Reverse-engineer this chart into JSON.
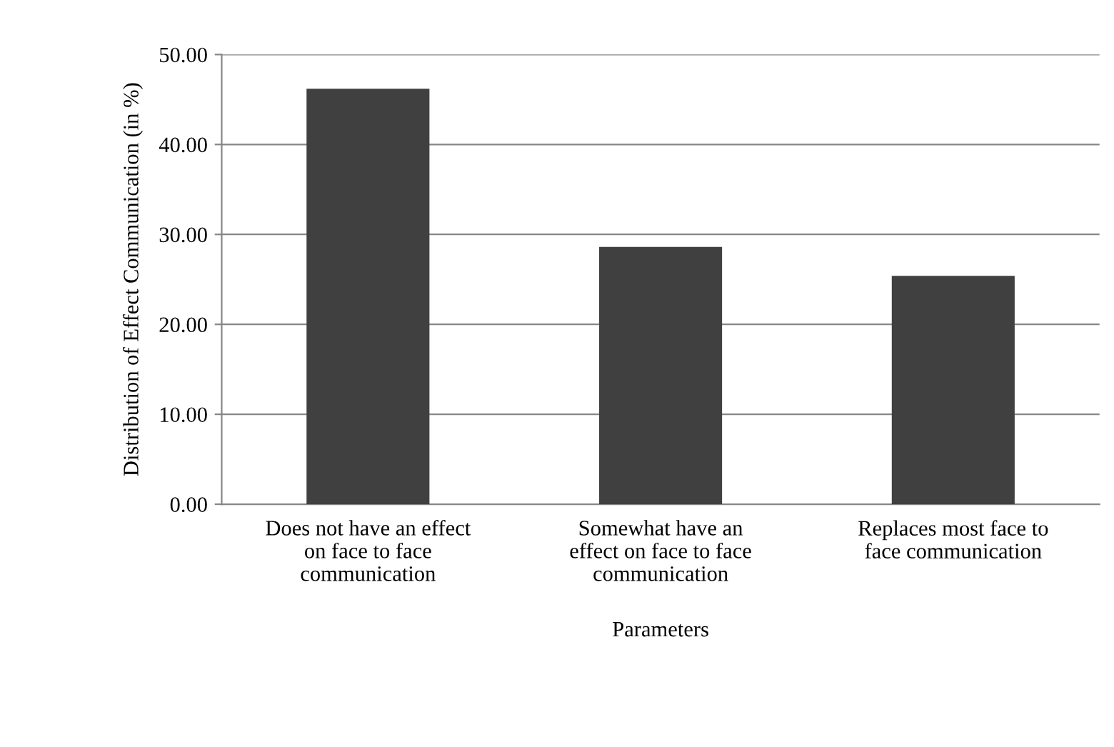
{
  "chart_data": {
    "type": "bar",
    "xlabel": "Parameters",
    "ylabel": "Distribution of Effect Communication (in %)",
    "categories": [
      "Does not have an effect\non face to face\ncommunication",
      "Somewhat have an\neffect on face to face\ncommunication",
      "Replaces most face to\nface communication"
    ],
    "values": [
      46.2,
      28.6,
      25.4
    ],
    "color": "#404040",
    "ylim": [
      0,
      50
    ],
    "yticks": [
      {
        "value": 0,
        "label": "0.00"
      },
      {
        "value": 10,
        "label": "10.00"
      },
      {
        "value": 20,
        "label": "20.00"
      },
      {
        "value": 30,
        "label": "30.00"
      },
      {
        "value": 40,
        "label": "40.00"
      },
      {
        "value": 50,
        "label": "50.00"
      }
    ],
    "grid": "y",
    "legend": false
  }
}
